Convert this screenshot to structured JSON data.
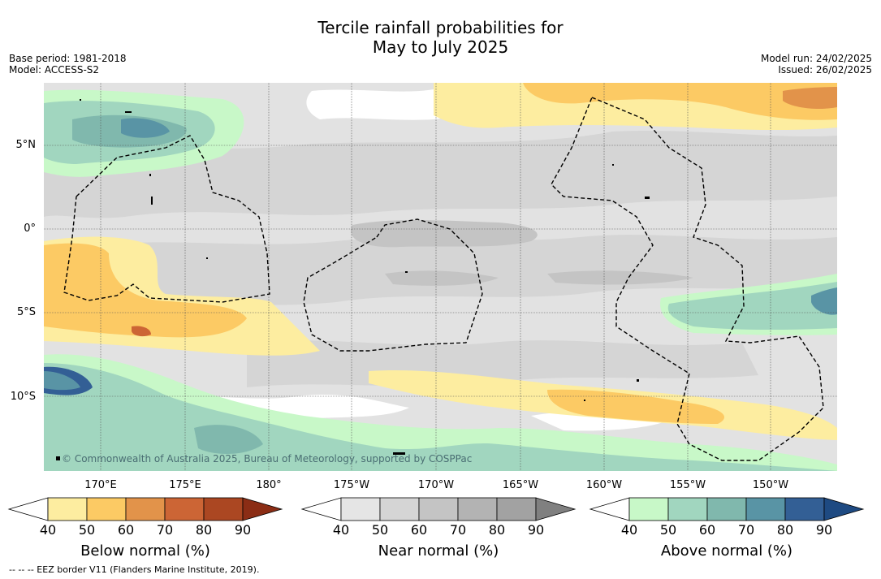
{
  "title": {
    "line1": "Tercile rainfall probabilities for",
    "line2": "May to July 2025"
  },
  "meta_left": {
    "base_period": "Base period: 1981-2018",
    "model": "Model: ACCESS-S2"
  },
  "meta_right": {
    "model_run": "Model run: 24/02/2025",
    "issued": "Issued: 26/02/2025"
  },
  "map": {
    "latitude_labels": [
      "5°N",
      "0°",
      "5°S",
      "10°S"
    ],
    "longitude_labels": [
      "170°E",
      "175°E",
      "180°",
      "175°W",
      "170°W",
      "165°W",
      "160°W",
      "155°W",
      "150°W"
    ],
    "copyright": "© Commonwealth of Australia 2025, Bureau of Meteorology, supported by COSPPac",
    "eez_border_style": "dashed black"
  },
  "colorbars": [
    {
      "name": "below-normal",
      "title": "Below normal (%)",
      "ticks": [
        "40",
        "50",
        "60",
        "70",
        "80",
        "90"
      ],
      "colors": [
        "#ffffff",
        "#fdeda0",
        "#fcca64",
        "#e2934a",
        "#cc6535",
        "#ab4722",
        "#8b2d15"
      ]
    },
    {
      "name": "near-normal",
      "title": "Near normal (%)",
      "ticks": [
        "40",
        "50",
        "60",
        "70",
        "80",
        "90"
      ],
      "colors": [
        "#ffffff",
        "#e5e5e5",
        "#d5d5d5",
        "#c4c4c4",
        "#b3b3b3",
        "#a2a2a2",
        "#808080"
      ]
    },
    {
      "name": "above-normal",
      "title": "Above normal (%)",
      "ticks": [
        "40",
        "50",
        "60",
        "70",
        "80",
        "90"
      ],
      "colors": [
        "#ffffff",
        "#c8f8c8",
        "#a1d6bf",
        "#80b8ad",
        "#5994a5",
        "#335f95",
        "#1e4a82"
      ]
    }
  ],
  "footnote": "--  --  -- EEZ border V11 (Flanders Marine Institute, 2019)."
}
